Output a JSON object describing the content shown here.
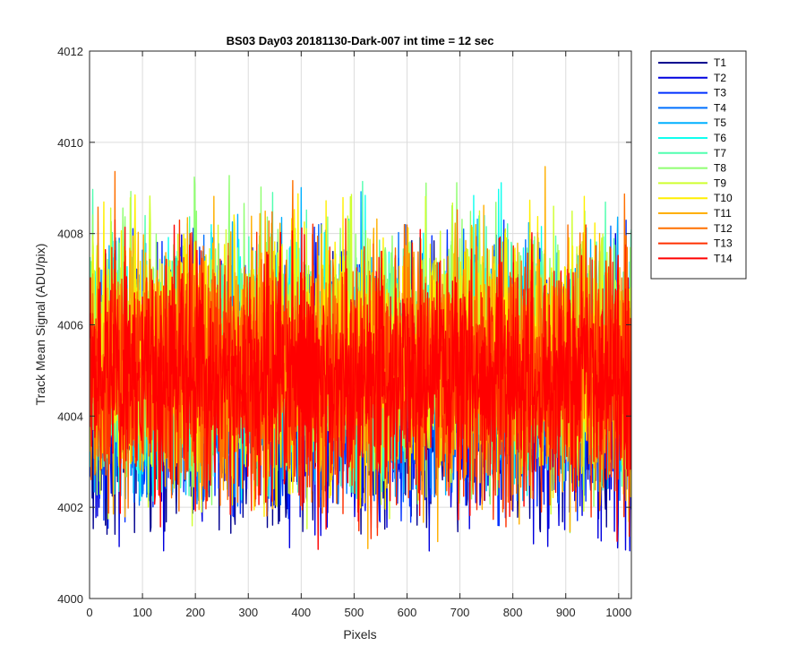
{
  "chart_data": {
    "type": "line",
    "title": "BS03 Day03 20181130-Dark-007 int time = 12 sec",
    "xlabel": "Pixels",
    "ylabel": "Track Mean Signal (ADU/pix)",
    "xlim": [
      0,
      1024
    ],
    "ylim": [
      4000,
      4012
    ],
    "xticks": [
      0,
      100,
      200,
      300,
      400,
      500,
      600,
      700,
      800,
      900,
      1000
    ],
    "yticks": [
      4000,
      4002,
      4004,
      4006,
      4008,
      4010,
      4012
    ],
    "grid": true,
    "legend_position": "outside-top-right",
    "n_points": 1024,
    "series": [
      {
        "name": "T1",
        "color": "#00008f",
        "mean": 4004.3,
        "spread": 1.3,
        "min": 4001.4,
        "max": 4007.9
      },
      {
        "name": "T2",
        "color": "#0000df",
        "mean": 4004.4,
        "spread": 1.3,
        "min": 4001.0,
        "max": 4008.1
      },
      {
        "name": "T3",
        "color": "#0030ff",
        "mean": 4004.6,
        "spread": 1.3,
        "min": 4001.5,
        "max": 4008.3
      },
      {
        "name": "T4",
        "color": "#0070ff",
        "mean": 4004.8,
        "spread": 1.3,
        "min": 4002.0,
        "max": 4008.2
      },
      {
        "name": "T5",
        "color": "#00b0ff",
        "mean": 4005.0,
        "spread": 1.3,
        "min": 4002.1,
        "max": 4009.6
      },
      {
        "name": "T6",
        "color": "#10ffef",
        "mean": 4005.1,
        "spread": 1.3,
        "min": 4002.1,
        "max": 4009.4
      },
      {
        "name": "T7",
        "color": "#50ffaf",
        "mean": 4005.3,
        "spread": 1.3,
        "min": 4002.2,
        "max": 4009.2
      },
      {
        "name": "T8",
        "color": "#8fff70",
        "mean": 4005.4,
        "spread": 1.3,
        "min": 4001.1,
        "max": 4009.3
      },
      {
        "name": "T9",
        "color": "#cfff30",
        "mean": 4005.3,
        "spread": 1.3,
        "min": 4001.5,
        "max": 4009.0
      },
      {
        "name": "T10",
        "color": "#ffef00",
        "mean": 4005.2,
        "spread": 1.3,
        "min": 4001.2,
        "max": 4009.0
      },
      {
        "name": "T11",
        "color": "#ffaf00",
        "mean": 4005.1,
        "spread": 1.3,
        "min": 4000.8,
        "max": 4010.2
      },
      {
        "name": "T12",
        "color": "#ff7000",
        "mean": 4005.0,
        "spread": 1.3,
        "min": 4001.8,
        "max": 4009.4
      },
      {
        "name": "T13",
        "color": "#ff3000",
        "mean": 4004.9,
        "spread": 1.3,
        "min": 4001.3,
        "max": 4008.4
      },
      {
        "name": "T14",
        "color": "#ff0000",
        "mean": 4004.8,
        "spread": 1.2,
        "min": 4000.5,
        "max": 4008.2
      }
    ]
  }
}
